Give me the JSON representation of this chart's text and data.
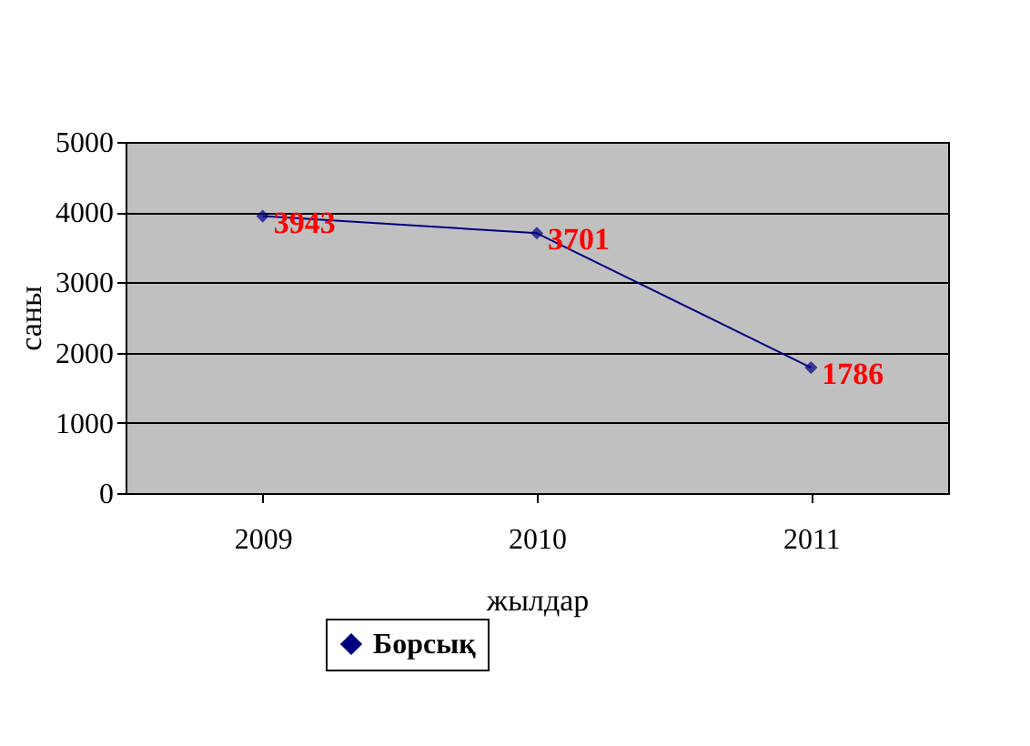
{
  "chart_data": {
    "type": "line",
    "categories": [
      "2009",
      "2010",
      "2011"
    ],
    "series": [
      {
        "name": "Борсық",
        "color": "#000080",
        "values": [
          3943,
          3701,
          1786
        ]
      }
    ],
    "xlabel": "жылдар",
    "ylabel": "саны",
    "ylim": [
      0,
      5000
    ],
    "yticks": [
      0,
      1000,
      2000,
      3000,
      4000,
      5000
    ],
    "grid": "y",
    "legend": "bottom",
    "marker": "diamond",
    "line_style": "solid",
    "data_labels": true
  }
}
